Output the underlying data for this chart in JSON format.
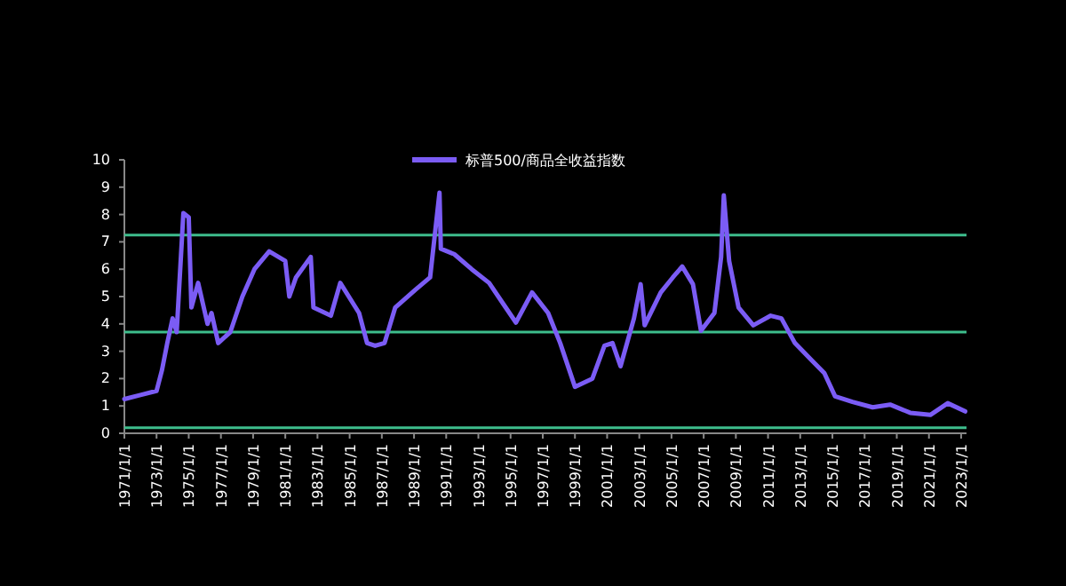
{
  "chart_data": {
    "type": "line",
    "legend": "top",
    "grid": false,
    "marker": "none",
    "line_style": "solid",
    "ylim": [
      0,
      10
    ],
    "yticks": [
      0,
      1,
      2,
      3,
      4,
      5,
      6,
      7,
      8,
      9,
      10
    ],
    "xlim": [
      "1971-01",
      "2023-05"
    ],
    "xticks": [
      {
        "value": "1971-01-01",
        "label": "1971/1/1"
      },
      {
        "value": "1973-01-01",
        "label": "1973/1/1"
      },
      {
        "value": "1975-01-01",
        "label": "1975/1/1"
      },
      {
        "value": "1977-01-01",
        "label": "1977/1/1"
      },
      {
        "value": "1979-01-01",
        "label": "1979/1/1"
      },
      {
        "value": "1981-01-01",
        "label": "1981/1/1"
      },
      {
        "value": "1983-01-01",
        "label": "1983/1/1"
      },
      {
        "value": "1985-01-01",
        "label": "1985/1/1"
      },
      {
        "value": "1987-01-01",
        "label": "1987/1/1"
      },
      {
        "value": "1989-01-01",
        "label": "1989/1/1"
      },
      {
        "value": "1991-01-01",
        "label": "1991/1/1"
      },
      {
        "value": "1993-01-01",
        "label": "1993/1/1"
      },
      {
        "value": "1995-01-01",
        "label": "1995/1/1"
      },
      {
        "value": "1997-01-01",
        "label": "1997/1/1"
      },
      {
        "value": "1999-01-01",
        "label": "1999/1/1"
      },
      {
        "value": "2001-01-01",
        "label": "2001/1/1"
      },
      {
        "value": "2003-01-01",
        "label": "2003/1/1"
      },
      {
        "value": "2005-01-01",
        "label": "2005/1/1"
      },
      {
        "value": "2007-01-01",
        "label": "2007/1/1"
      },
      {
        "value": "2009-01-01",
        "label": "2009/1/1"
      },
      {
        "value": "2011-01-01",
        "label": "2011/1/1"
      },
      {
        "value": "2013-01-01",
        "label": "2013/1/1"
      },
      {
        "value": "2015-01-01",
        "label": "2015/1/1"
      },
      {
        "value": "2017-01-01",
        "label": "2017/1/1"
      },
      {
        "value": "2019-01-01",
        "label": "2019/1/1"
      },
      {
        "value": "2021-01-01",
        "label": "2021/1/1"
      },
      {
        "value": "2023-01-01",
        "label": "2023/1/1"
      }
    ],
    "ref_lines": [
      {
        "axis": "y",
        "value": 7.25,
        "color": "#3dbd8c"
      },
      {
        "axis": "y",
        "value": 3.7,
        "color": "#3dbd8c"
      },
      {
        "axis": "y",
        "value": 0.2,
        "color": "#3dbd8c"
      }
    ],
    "series": [
      {
        "name": "标普500/商品全收益指数",
        "color": "#7b5cf5",
        "x": [
          "1971-01",
          "1972-01",
          "1973-01",
          "1973-05",
          "1973-09",
          "1974-01",
          "1974-04",
          "1974-09",
          "1975-01",
          "1975-03",
          "1975-08",
          "1976-03",
          "1976-06",
          "1976-11",
          "1977-08",
          "1978-05",
          "1979-02",
          "1980-01",
          "1981-01",
          "1981-04",
          "1981-09",
          "1982-08",
          "1982-10",
          "1983-11",
          "1984-06",
          "1985-08",
          "1986-02",
          "1986-08",
          "1987-03",
          "1987-11",
          "1989-02",
          "1990-01",
          "1990-08",
          "1990-09",
          "1991-07",
          "1992-08",
          "1993-09",
          "1994-08",
          "1995-05",
          "1996-05",
          "1997-05",
          "1998-02",
          "1999-01",
          "2000-02",
          "2000-11",
          "2001-05",
          "2001-11",
          "2002-09",
          "2003-02",
          "2003-05",
          "2004-05",
          "2005-02",
          "2005-09",
          "2006-05",
          "2006-11",
          "2007-09",
          "2008-02",
          "2008-04",
          "2008-08",
          "2009-03",
          "2010-02",
          "2011-03",
          "2011-11",
          "2012-09",
          "2013-10",
          "2014-07",
          "2015-03",
          "2016-04",
          "2017-07",
          "2018-08",
          "2019-11",
          "2021-02",
          "2022-03",
          "2023-04"
        ],
        "values": [
          1.25,
          1.4,
          1.55,
          2.3,
          3.3,
          4.2,
          3.7,
          8.05,
          7.9,
          4.6,
          5.5,
          4.0,
          4.4,
          3.3,
          3.7,
          5.0,
          6.0,
          6.65,
          6.3,
          5.0,
          5.7,
          6.45,
          4.6,
          4.3,
          5.5,
          4.4,
          3.3,
          3.2,
          3.3,
          4.6,
          5.25,
          5.7,
          8.8,
          6.75,
          6.55,
          6.0,
          5.5,
          4.7,
          4.05,
          5.15,
          4.4,
          3.3,
          1.7,
          2.0,
          3.2,
          3.3,
          2.45,
          4.2,
          5.45,
          3.95,
          5.15,
          5.7,
          6.1,
          5.45,
          3.75,
          4.4,
          6.45,
          8.7,
          6.3,
          4.6,
          3.95,
          4.3,
          4.2,
          3.3,
          2.65,
          2.2,
          1.35,
          1.15,
          0.95,
          1.05,
          0.75,
          0.67,
          1.1,
          0.8
        ]
      }
    ]
  }
}
